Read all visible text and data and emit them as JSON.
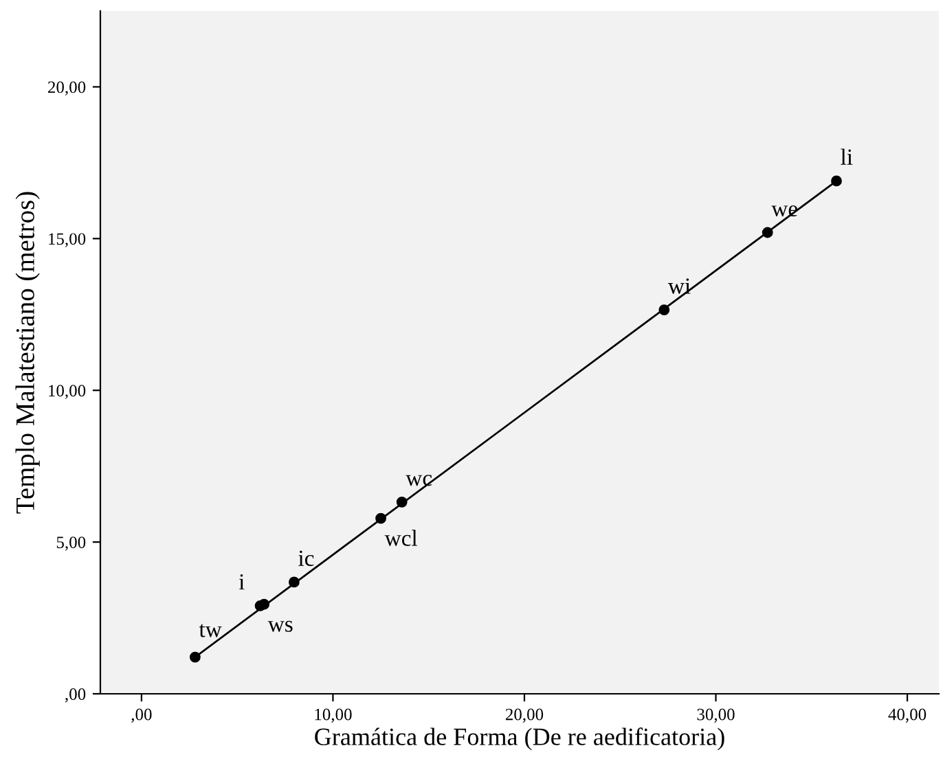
{
  "chart_data": {
    "type": "scatter",
    "xlabel": "Gramática de Forma (De re aedificatoria)",
    "ylabel": "Templo Malatestiano (metros)",
    "xlim": [
      -2.15,
      41.65
    ],
    "ylim": [
      0,
      22.5
    ],
    "xticks": [
      {
        "value": 0,
        "label": ",00"
      },
      {
        "value": 10,
        "label": "10,00"
      },
      {
        "value": 20,
        "label": "20,00"
      },
      {
        "value": 30,
        "label": "30,00"
      },
      {
        "value": 40,
        "label": "40,00"
      }
    ],
    "yticks": [
      {
        "value": 0,
        "label": ",00"
      },
      {
        "value": 5,
        "label": "5,00"
      },
      {
        "value": 10,
        "label": "10,00"
      },
      {
        "value": 15,
        "label": "15,00"
      },
      {
        "value": 20,
        "label": "20,00"
      }
    ],
    "grid": false,
    "series": [
      {
        "marker": "circle",
        "color": "#000000",
        "x": [
          2.8,
          6.2,
          6.4,
          7.97,
          12.5,
          13.6,
          27.3,
          32.7,
          36.3
        ],
        "values": [
          1.21,
          2.9,
          2.95,
          3.68,
          5.78,
          6.32,
          12.65,
          15.2,
          16.9
        ]
      },
      {
        "type": "line",
        "color": "#000000",
        "marker": "none",
        "line_style": "solid",
        "x": [
          2.8,
          36.3
        ],
        "values": [
          1.21,
          16.9
        ]
      }
    ],
    "annotations": [
      {
        "text": "tw",
        "x": 2.8,
        "y": 1.21
      },
      {
        "text": "i",
        "x": 6.2,
        "y": 2.9
      },
      {
        "text": "ws",
        "x": 6.4,
        "y": 2.95
      },
      {
        "text": "ic",
        "x": 7.97,
        "y": 3.68
      },
      {
        "text": "wcl",
        "x": 12.5,
        "y": 5.78
      },
      {
        "text": "wc",
        "x": 13.6,
        "y": 6.32
      },
      {
        "text": "wi",
        "x": 27.3,
        "y": 12.65
      },
      {
        "text": "we",
        "x": 32.7,
        "y": 15.2
      },
      {
        "text": "li",
        "x": 36.3,
        "y": 16.9
      }
    ]
  }
}
